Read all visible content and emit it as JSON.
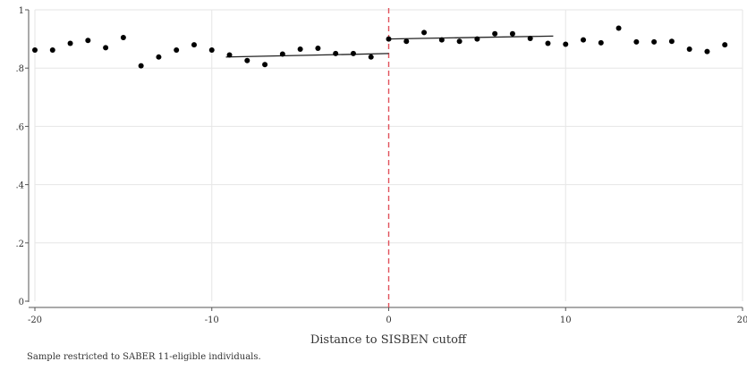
{
  "chart_data": {
    "type": "scatter",
    "xlabel": "Distance to SISBEN cutoff",
    "ylabel": "",
    "xlim": [
      -20,
      20
    ],
    "ylim": [
      0,
      1
    ],
    "x_ticks": [
      -20,
      -10,
      0,
      10,
      20
    ],
    "x_tick_labels": [
      "-20",
      "-10",
      "0",
      "10",
      "20"
    ],
    "y_ticks": [
      0,
      0.2,
      0.4,
      0.6,
      0.8,
      1
    ],
    "y_tick_labels": [
      "0",
      ".2",
      ".4",
      ".6",
      ".8",
      "1"
    ],
    "grid": true,
    "cutoff_x": 0,
    "cutoff_color": "#e0505a",
    "points": {
      "x": [
        -20,
        -19,
        -18,
        -17,
        -16,
        -15,
        -14,
        -13,
        -12,
        -11,
        -10,
        -9,
        -8,
        -7,
        -6,
        -5,
        -4,
        -3,
        -2,
        -1,
        0,
        1,
        2,
        3,
        4,
        5,
        6,
        7,
        8,
        9,
        10,
        11,
        12,
        13,
        14,
        15,
        16,
        17,
        18,
        19
      ],
      "y": [
        0.862,
        0.862,
        0.885,
        0.895,
        0.87,
        0.905,
        0.808,
        0.838,
        0.862,
        0.88,
        0.862,
        0.845,
        0.826,
        0.812,
        0.848,
        0.865,
        0.868,
        0.85,
        0.85,
        0.838,
        0.9,
        0.892,
        0.922,
        0.897,
        0.892,
        0.9,
        0.918,
        0.918,
        0.902,
        0.885,
        0.882,
        0.897,
        0.887,
        0.937,
        0.89,
        0.89,
        0.892,
        0.865,
        0.857,
        0.88
      ]
    },
    "fit_lines": [
      {
        "x": [
          -9.2,
          0
        ],
        "y": [
          0.838,
          0.85
        ]
      },
      {
        "x": [
          0,
          9.3
        ],
        "y": [
          0.9,
          0.91
        ]
      }
    ]
  },
  "footnote": "Sample restricted to SABER 11-eligible individuals."
}
